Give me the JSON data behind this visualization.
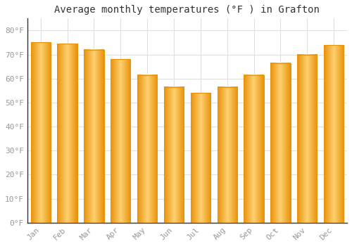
{
  "months": [
    "Jan",
    "Feb",
    "Mar",
    "Apr",
    "May",
    "Jun",
    "Jul",
    "Aug",
    "Sep",
    "Oct",
    "Nov",
    "Dec"
  ],
  "values": [
    75,
    74.5,
    72,
    68,
    61.5,
    56.5,
    54,
    56.5,
    61.5,
    66.5,
    70,
    74
  ],
  "bar_color_main": "#FFC04C",
  "bar_color_edge": "#E8930A",
  "title": "Average monthly temperatures (°F ) in Grafton",
  "ylim": [
    0,
    85
  ],
  "yticks": [
    0,
    10,
    20,
    30,
    40,
    50,
    60,
    70,
    80
  ],
  "ytick_labels": [
    "0°F",
    "10°F",
    "20°F",
    "30°F",
    "40°F",
    "50°F",
    "60°F",
    "70°F",
    "80°F"
  ],
  "background_color": "#ffffff",
  "grid_color": "#e0e0e0",
  "title_fontsize": 10,
  "tick_fontsize": 8,
  "font_family": "monospace",
  "tick_color": "#999999",
  "bar_width": 0.75
}
